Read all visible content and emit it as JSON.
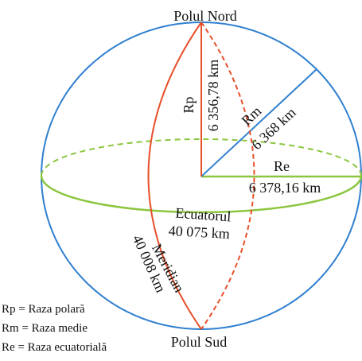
{
  "north_pole": "Polul Nord",
  "south_pole": "Polul Sud",
  "polar_radius": {
    "label": "Rp",
    "value": "6 356,78 km"
  },
  "mean_radius": {
    "label": "Rm",
    "value": "6 368 km"
  },
  "equatorial_radius": {
    "label": "Re",
    "value": "6 378,16 km"
  },
  "equator": {
    "label": "Ecuatorul",
    "value": "40 075 km"
  },
  "meridian": {
    "label": "Meridian",
    "value": "40 008 km"
  },
  "legend": [
    "Rp = Raza polară",
    "Rm = Raza medie",
    "Re = Raza ecuatorială"
  ]
}
